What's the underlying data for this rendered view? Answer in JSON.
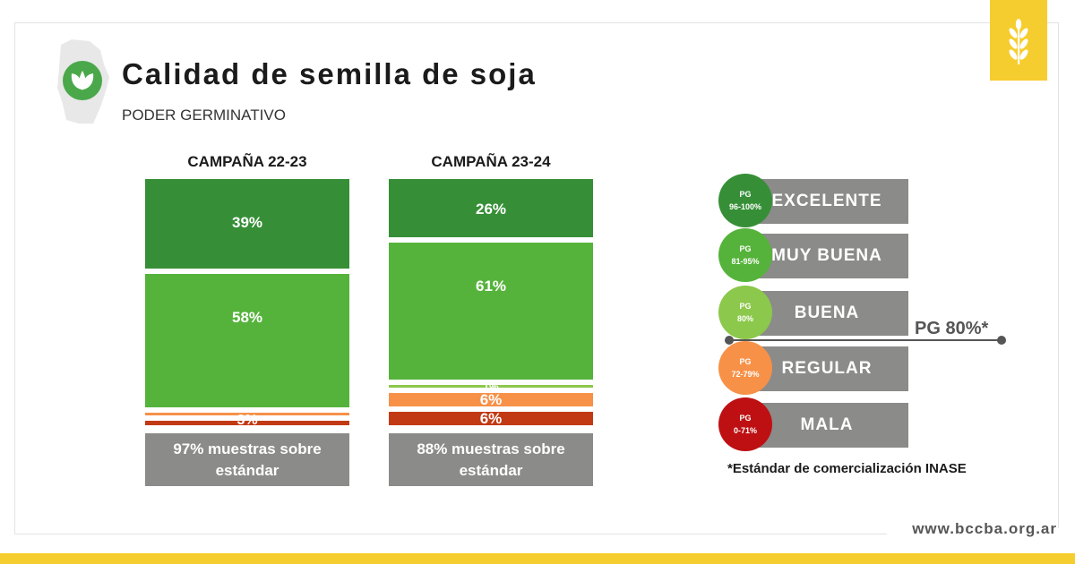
{
  "header": {
    "title": "Calidad de semilla de soja",
    "subtitle": "PODER GERMINATIVO"
  },
  "chart_data": {
    "type": "bar",
    "stacked": true,
    "title": "Calidad de semilla de soja",
    "subtitle": "PODER GERMINATIVO",
    "categories": [
      "CAMPAÑA 22-23",
      "CAMPAÑA 23-24"
    ],
    "series": [
      {
        "name": "EXCELENTE",
        "values": [
          39,
          26
        ],
        "labels": [
          "39%",
          "26%"
        ]
      },
      {
        "name": "MUY BUENA",
        "values": [
          58,
          61
        ],
        "labels": [
          "58%",
          "61%"
        ]
      },
      {
        "name": "BUENA",
        "values": [
          0,
          1
        ],
        "labels": [
          "",
          "1%"
        ]
      },
      {
        "name": "REGULAR",
        "values": [
          1,
          6
        ],
        "labels": [
          "",
          "6%"
        ]
      },
      {
        "name": "MALA",
        "values": [
          2,
          6
        ],
        "labels": [
          "",
          "6%"
        ]
      }
    ],
    "combined_labels": [
      "3%",
      ""
    ],
    "summaries": [
      "97% muestras sobre estándar",
      "88% muestras sobre estándar"
    ],
    "legend": [
      {
        "name": "EXCELENTE",
        "pg_label": "PG",
        "pg_range": "96-100%"
      },
      {
        "name": "MUY BUENA",
        "pg_label": "PG",
        "pg_range": "81-95%"
      },
      {
        "name": "BUENA",
        "pg_label": "PG",
        "pg_range": "80%"
      },
      {
        "name": "REGULAR",
        "pg_label": "PG",
        "pg_range": "72-79%"
      },
      {
        "name": "MALA",
        "pg_label": "PG",
        "pg_range": "0-71%"
      }
    ],
    "threshold_label": "PG 80%*",
    "footnote": "*Estándar de comercialización INASE",
    "legend_position": "right"
  },
  "colors": {
    "EXCELENTE": "#368f37",
    "MUY BUENA": "#55b33b",
    "BUENA": "#8cc84b",
    "REGULAR": "#f79148",
    "MALA": "#c23a14",
    "MALA_circle": "#be1013",
    "summary_box": "#8b8b89",
    "accent_yellow": "#f6cd2e"
  },
  "footer": {
    "website": "www.bccba.org.ar"
  },
  "icons": {
    "logo": "wheat-icon",
    "brand": "leaf-icon",
    "map": "province-map-icon"
  }
}
